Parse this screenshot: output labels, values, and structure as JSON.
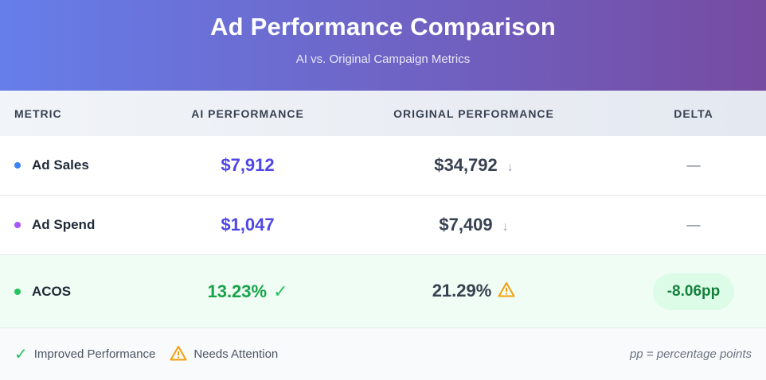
{
  "header": {
    "title": "Ad Performance Comparison",
    "subtitle": "AI vs. Original Campaign Metrics"
  },
  "columns": [
    "METRIC",
    "AI PERFORMANCE",
    "ORIGINAL PERFORMANCE",
    "DELTA"
  ],
  "rows": [
    {
      "metric": "Ad Sales",
      "dot_color": "#3b82f6",
      "ai": "$7,912",
      "original": "$34,792",
      "delta": "—"
    },
    {
      "metric": "Ad Spend",
      "dot_color": "#a855f7",
      "ai": "$1,047",
      "original": "$7,409",
      "delta": "—"
    },
    {
      "metric": "ACOS",
      "dot_color": "#22c55e",
      "ai": "13.23%",
      "original": "21.29%",
      "delta": "-8.06pp"
    }
  ],
  "icons": {
    "down": "↓",
    "check": "✓"
  },
  "legend": {
    "improved": "Improved Performance",
    "attention": "Needs Attention",
    "note": "pp = percentage points"
  }
}
